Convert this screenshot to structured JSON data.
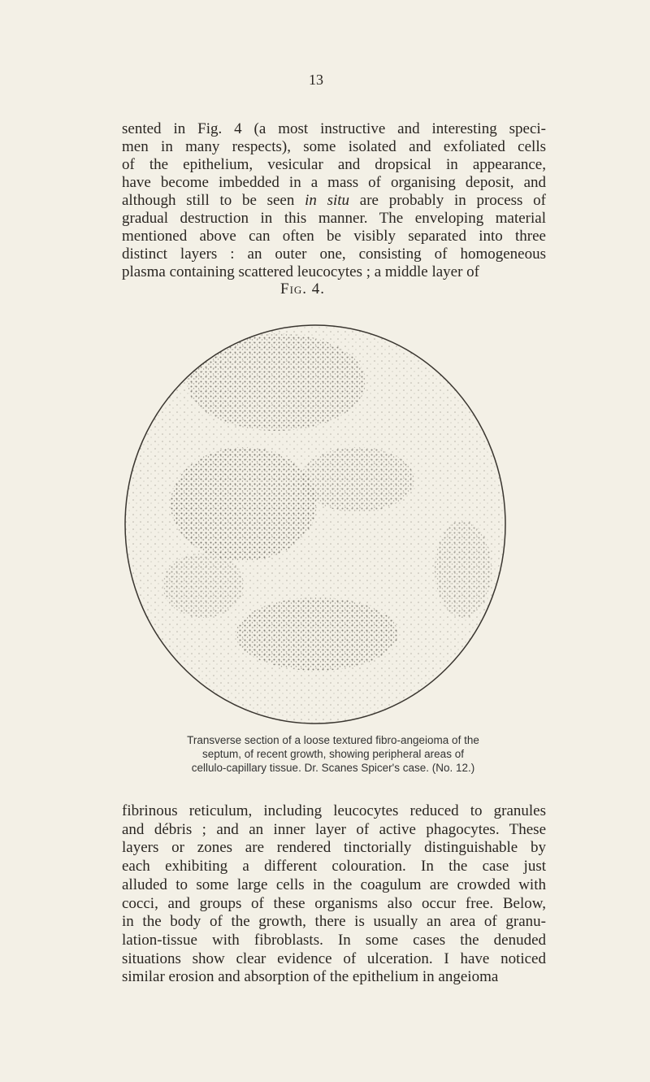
{
  "page_number": "13",
  "paragraphs": [
    [
      "sented in Fig. 4 (a most instructive and interesting speci-",
      "men in many respects), some isolated and exfoliated cells",
      "of the epithelium, vesicular and dropsical in appearance,",
      "have become imbedded in a mass of organising deposit, and",
      [
        "although still to be seen ",
        "in situ",
        " are probably in process of"
      ],
      "gradual destruction in this manner. The enveloping material",
      "mentioned above can often be visibly separated into three",
      "distinct layers : an outer one, consisting of homogeneous",
      "plasma containing scattered leucocytes ; a middle layer of"
    ],
    [
      "fibrinous reticulum, including leucocytes reduced to granules",
      "and débris ; and an inner layer of active phagocytes. These",
      "layers or zones are rendered tinctorially distinguishable by",
      "each exhibiting a different colouration. In the case just",
      "alluded to some large cells in the coagulum are crowded with",
      "cocci, and groups of these organisms also occur free. Below,",
      "in the body of the growth, there is usually an area of granu-",
      "lation-tissue with fibroblasts. In some cases the denuded",
      "situations show clear evidence of ulceration. I have noticed",
      "similar erosion and absorption of the epithelium in angeioma"
    ]
  ],
  "figure": {
    "label": "Fig. 4.",
    "caption": [
      "Transverse section of a loose textured fibro-angeioma of the",
      "septum, of recent growth, showing peripheral areas of",
      "cellulo-capillary tissue. Dr. Scanes Spicer's case. (No. 12.)"
    ]
  }
}
